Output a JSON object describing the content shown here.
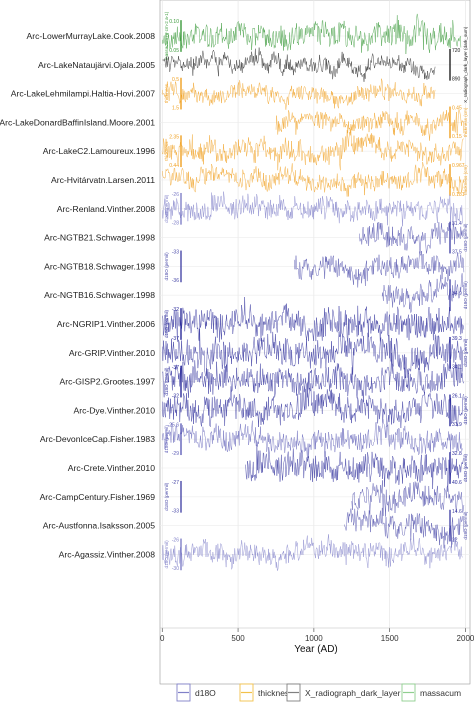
{
  "chart_data": {
    "type": "line",
    "xlabel": "Year (AD)",
    "xlim": [
      -15,
      2030
    ],
    "x_ticks": [
      0,
      500,
      1000,
      1500,
      2000
    ],
    "x_tick_labels": [
      "0",
      "500",
      "1000",
      "1500",
      "2000"
    ],
    "grid": true,
    "legend_position": "bottom",
    "legend": [
      {
        "name": "d18O",
        "color": "#8080c8"
      },
      {
        "name": "thickness",
        "color": "#f2c14a"
      },
      {
        "name": "X_radiograph_dark_layer",
        "color": "#808080"
      },
      {
        "name": "massacum",
        "color": "#8fcf8f"
      }
    ],
    "series": [
      {
        "name": "Arc-LowerMurrayLake.Cook.2008",
        "variable": "massacum",
        "color": "#3a9a3a",
        "x_start": 0,
        "x_end": 1970,
        "axis_label": "massacum (g cm-2 a-1)",
        "axis_ticks": [
          "0.10",
          "0.05"
        ],
        "axis_side": "left",
        "noise": 0.3,
        "level": 0.6
      },
      {
        "name": "Arc-LakeNataujärvi.Ojala.2005",
        "variable": "X_radiograph_dark_layer",
        "color": "#222222",
        "x_start": 0,
        "x_end": 1800,
        "axis_label": "X_radiograph_dark_layer (dark_sum)",
        "axis_ticks": [
          "720",
          "890"
        ],
        "axis_side": "right",
        "noise": 0.18,
        "level": 0.5
      },
      {
        "name": "Arc-LakeLehmilampi.Haltia-Hovi.2007",
        "variable": "thickness",
        "color": "#f0a020",
        "x_start": 0,
        "x_end": 1800,
        "axis_label": "thickness",
        "axis_ticks": [
          "0.5",
          "1.5"
        ],
        "axis_side": "left",
        "noise": 0.2,
        "level": 0.5
      },
      {
        "name": "Arc-LakeDonardBaffinIsland.Moore.2001",
        "variable": "thickness",
        "color": "#f0a020",
        "x_start": 750,
        "x_end": 1990,
        "axis_label": "thickness (cm)",
        "axis_ticks": [
          "0.45",
          "0.15"
        ],
        "axis_side": "right",
        "noise": 0.22,
        "level": 0.5
      },
      {
        "name": "Arc-LakeC2.Lamoureux.1996",
        "variable": "thickness",
        "color": "#f0a020",
        "x_start": 0,
        "x_end": 1990,
        "axis_label": "thickness",
        "axis_ticks": [
          "2.35",
          "0.44"
        ],
        "axis_side": "left",
        "noise": 0.25,
        "level": 0.5
      },
      {
        "name": "Arc-Hvitárvatn.Larsen.2011",
        "variable": "thickness",
        "color": "#f0a020",
        "x_start": 0,
        "x_end": 1990,
        "axis_label": "thickness (cm)",
        "axis_ticks": [
          "0.967",
          "0.181"
        ],
        "axis_side": "right",
        "noise": 0.22,
        "level": 0.55
      },
      {
        "name": "Arc-Renland.Vinther.2008",
        "variable": "d18O",
        "color": "#8080c8",
        "x_start": 0,
        "x_end": 1980,
        "axis_label": "d18O (permil)",
        "axis_ticks": [
          "-26",
          "-28"
        ],
        "axis_side": "left",
        "noise": 0.25,
        "level": 0.5
      },
      {
        "name": "Arc-NGTB21.Schwager.1998",
        "variable": "d18O",
        "color": "#4848a8",
        "x_start": 1300,
        "x_end": 1990,
        "axis_label": "d18O (permil)",
        "axis_ticks": [
          "31.4",
          "37.5"
        ],
        "axis_side": "right",
        "noise": 0.3,
        "level": 0.5
      },
      {
        "name": "Arc-NGTB18.Schwager.1998",
        "variable": "d18O",
        "color": "#4848a8",
        "x_start": 870,
        "x_end": 1990,
        "axis_label": "d18O (permil)",
        "axis_ticks": [
          "-33",
          "-36"
        ],
        "axis_side": "left",
        "noise": 0.25,
        "level": 0.5
      },
      {
        "name": "Arc-NGTB16.Schwager.1998",
        "variable": "d18O",
        "color": "#4848a8",
        "x_start": 1450,
        "x_end": 1990,
        "axis_label": "d18O (permil)",
        "axis_ticks": [
          "34.9"
        ],
        "axis_side": "right",
        "noise": 0.3,
        "level": 0.5
      },
      {
        "name": "Arc-NGRIP1.Vinther.2006",
        "variable": "d18O",
        "color": "#2a2a9a",
        "x_start": 0,
        "x_end": 1990,
        "axis_label": "d18O (permil)",
        "axis_ticks": [
          "-32",
          "-37"
        ],
        "axis_side": "left",
        "noise": 0.35,
        "level": 0.5
      },
      {
        "name": "Arc-GRIP.Vinther.2010",
        "variable": "d18O",
        "color": "#2a2a9a",
        "x_start": 0,
        "x_end": 1990,
        "axis_label": "d18O (permil)",
        "axis_ticks": [
          "39.3",
          "34.1"
        ],
        "axis_side": "right",
        "noise": 0.35,
        "level": 0.5
      },
      {
        "name": "Arc-GISP2.Grootes.1997",
        "variable": "d18O",
        "color": "#2a2a9a",
        "x_start": 0,
        "x_end": 1990,
        "axis_label": "d18O (permil)",
        "axis_ticks": [
          "-37",
          "-32"
        ],
        "axis_side": "left",
        "noise": 0.35,
        "level": 0.5
      },
      {
        "name": "Arc-Dye.Vinther.2010",
        "variable": "d18O",
        "color": "#2a2a9a",
        "x_start": 0,
        "x_end": 1990,
        "axis_label": "d18O (permil)",
        "axis_ticks": [
          "26.1",
          "31.9"
        ],
        "axis_side": "right",
        "noise": 0.35,
        "level": 0.5
      },
      {
        "name": "Arc-DevonIceCap.Fisher.1983",
        "variable": "d18O",
        "color": "#6060b8",
        "x_start": 0,
        "x_end": 1980,
        "axis_label": "d18O (permil)",
        "axis_ticks": [
          "-25.6",
          "-29"
        ],
        "axis_side": "left",
        "noise": 0.28,
        "level": 0.5
      },
      {
        "name": "Arc-Crete.Vinther.2010",
        "variable": "d18O",
        "color": "#2a2a9a",
        "x_start": 550,
        "x_end": 1990,
        "axis_label": "d18O (permil)",
        "axis_ticks": [
          "32.8",
          "40.6"
        ],
        "axis_side": "right",
        "noise": 0.35,
        "level": 0.5
      },
      {
        "name": "Arc-CampCentury.Fisher.1969",
        "variable": "d18O",
        "color": "#4848a8",
        "x_start": 1250,
        "x_end": 1990,
        "axis_label": "d18O (permil)",
        "axis_ticks": [
          "-27",
          "-33"
        ],
        "axis_side": "left",
        "noise": 0.3,
        "level": 0.5
      },
      {
        "name": "Arc-Austfonna.Isaksson.2005",
        "variable": "d18O",
        "color": "#4848a8",
        "x_start": 1200,
        "x_end": 1990,
        "axis_label": "d18O (permil)",
        "axis_ticks": [
          "14.6",
          "22"
        ],
        "axis_side": "right",
        "noise": 0.3,
        "level": 0.5
      },
      {
        "name": "Arc-Agassiz.Vinther.2008",
        "variable": "d18O",
        "color": "#8080c8",
        "x_start": 0,
        "x_end": 1980,
        "axis_label": "d18O (permil)",
        "axis_ticks": [
          "-26",
          "-30"
        ],
        "axis_side": "left",
        "noise": 0.25,
        "level": 0.5
      }
    ]
  }
}
